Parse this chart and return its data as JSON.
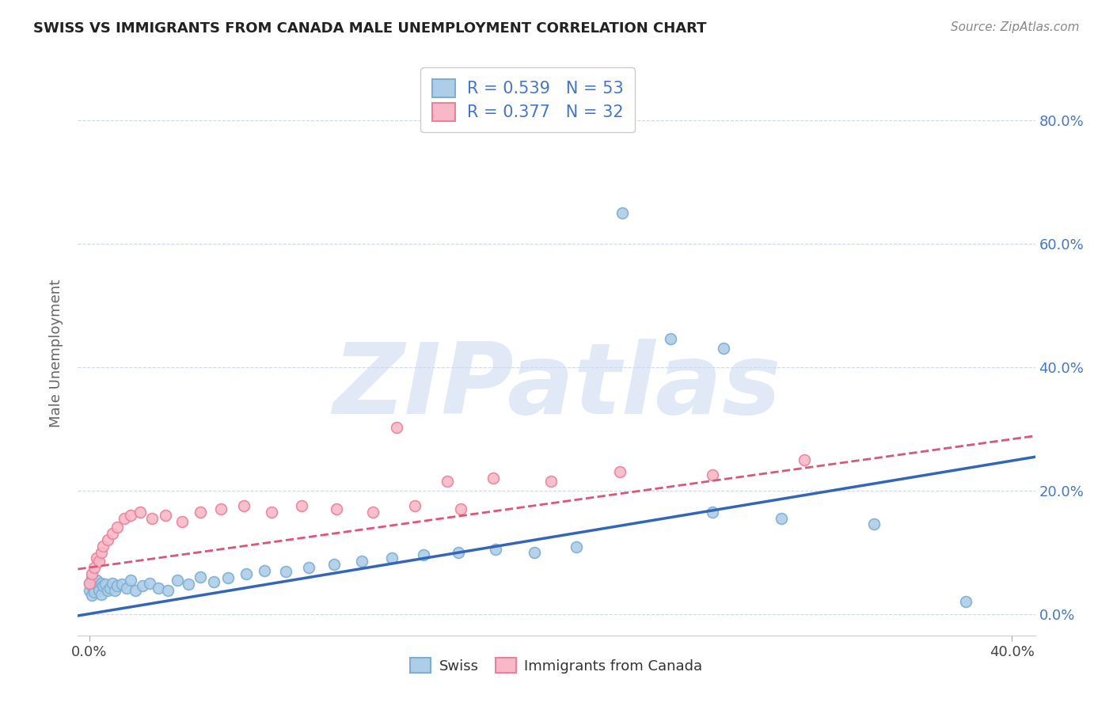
{
  "title": "SWISS VS IMMIGRANTS FROM CANADA MALE UNEMPLOYMENT CORRELATION CHART",
  "source_text": "Source: ZipAtlas.com",
  "ylabel": "Male Unemployment",
  "ytick_labels": [
    "0.0%",
    "20.0%",
    "40.0%",
    "60.0%",
    "80.0%"
  ],
  "ytick_values": [
    0.0,
    0.2,
    0.4,
    0.6,
    0.8
  ],
  "xlim": [
    -0.005,
    0.41
  ],
  "ylim": [
    -0.035,
    0.88
  ],
  "swiss_color": "#7bafd4",
  "swiss_fill": "#aecde8",
  "canada_color": "#f08098",
  "canada_fill": "#f8b8c8",
  "trend_swiss_color": "#3366bb",
  "trend_canada_color": "#dd5577",
  "R_swiss": 0.539,
  "N_swiss": 53,
  "R_canada": 0.377,
  "N_canada": 32,
  "swiss_x": [
    0.0,
    0.0,
    0.001,
    0.001,
    0.001,
    0.002,
    0.002,
    0.002,
    0.003,
    0.003,
    0.004,
    0.004,
    0.005,
    0.005,
    0.006,
    0.007,
    0.008,
    0.009,
    0.01,
    0.011,
    0.012,
    0.014,
    0.016,
    0.018,
    0.02,
    0.023,
    0.026,
    0.03,
    0.034,
    0.038,
    0.043,
    0.048,
    0.054,
    0.06,
    0.068,
    0.076,
    0.085,
    0.095,
    0.106,
    0.118,
    0.131,
    0.145,
    0.16,
    0.176,
    0.193,
    0.211,
    0.231,
    0.252,
    0.275,
    0.3,
    0.27,
    0.34,
    0.38
  ],
  "swiss_y": [
    0.05,
    0.038,
    0.045,
    0.03,
    0.058,
    0.04,
    0.052,
    0.035,
    0.048,
    0.055,
    0.042,
    0.038,
    0.05,
    0.032,
    0.045,
    0.048,
    0.038,
    0.042,
    0.05,
    0.038,
    0.045,
    0.048,
    0.042,
    0.055,
    0.038,
    0.045,
    0.05,
    0.042,
    0.038,
    0.055,
    0.048,
    0.06,
    0.052,
    0.058,
    0.065,
    0.07,
    0.068,
    0.075,
    0.08,
    0.085,
    0.09,
    0.095,
    0.1,
    0.105,
    0.1,
    0.108,
    0.65,
    0.445,
    0.43,
    0.155,
    0.165,
    0.145,
    0.02
  ],
  "canada_x": [
    0.0,
    0.001,
    0.002,
    0.003,
    0.004,
    0.005,
    0.006,
    0.008,
    0.01,
    0.012,
    0.015,
    0.018,
    0.022,
    0.027,
    0.033,
    0.04,
    0.048,
    0.057,
    0.067,
    0.079,
    0.092,
    0.107,
    0.123,
    0.141,
    0.161,
    0.133,
    0.155,
    0.175,
    0.2,
    0.23,
    0.27,
    0.31
  ],
  "canada_y": [
    0.05,
    0.065,
    0.075,
    0.09,
    0.085,
    0.1,
    0.11,
    0.12,
    0.13,
    0.14,
    0.155,
    0.16,
    0.165,
    0.155,
    0.16,
    0.15,
    0.165,
    0.17,
    0.175,
    0.165,
    0.175,
    0.17,
    0.165,
    0.175,
    0.17,
    0.302,
    0.215,
    0.22,
    0.215,
    0.23,
    0.225,
    0.25
  ],
  "watermark_text": "ZIPatlas",
  "background_color": "#ffffff",
  "grid_color": "#d0d8e8",
  "right_axis_color": "#4477cc",
  "title_color": "#222222",
  "source_color": "#888888",
  "ylabel_color": "#666666"
}
